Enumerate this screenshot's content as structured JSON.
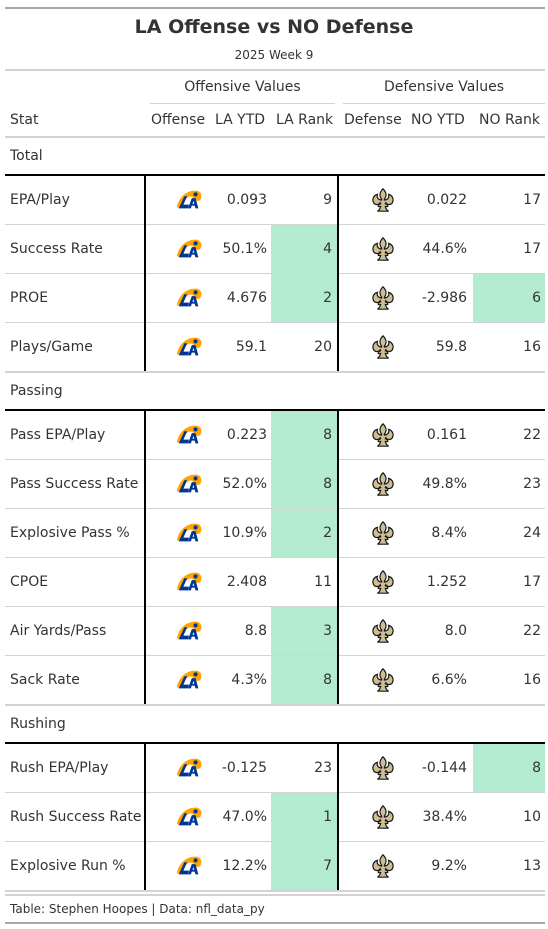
{
  "header": {
    "title": "LA Offense vs NO Defense",
    "subtitle": "2025 Week 9"
  },
  "spanners": {
    "offense": "Offensive Values",
    "defense": "Defensive Values"
  },
  "columns": {
    "stat": "Stat",
    "offense": "Offense",
    "la_ytd": "LA YTD",
    "la_rank": "LA Rank",
    "defense": "Defense",
    "no_ytd": "NO YTD",
    "no_rank": "NO Rank"
  },
  "logos": {
    "offense_icon": "rams-logo-icon",
    "defense_icon": "saints-fleur-de-lis-icon",
    "rams_colors": [
      "#003594",
      "#ffa300"
    ],
    "saints_color": "#101820",
    "saints_gold": "#d3bc8d"
  },
  "highlight_color": "#b3ebd0",
  "groups": [
    {
      "label": "Total",
      "rows": [
        {
          "stat": "EPA/Play",
          "la_ytd": "0.093",
          "la_rank": "9",
          "la_hl": false,
          "no_ytd": "0.022",
          "no_rank": "17",
          "no_hl": false
        },
        {
          "stat": "Success Rate",
          "la_ytd": "50.1%",
          "la_rank": "4",
          "la_hl": true,
          "no_ytd": "44.6%",
          "no_rank": "17",
          "no_hl": false
        },
        {
          "stat": "PROE",
          "la_ytd": "4.676",
          "la_rank": "2",
          "la_hl": true,
          "no_ytd": "-2.986",
          "no_rank": "6",
          "no_hl": true
        },
        {
          "stat": "Plays/Game",
          "la_ytd": "59.1",
          "la_rank": "20",
          "la_hl": false,
          "no_ytd": "59.8",
          "no_rank": "16",
          "no_hl": false
        }
      ]
    },
    {
      "label": "Passing",
      "rows": [
        {
          "stat": "Pass EPA/Play",
          "la_ytd": "0.223",
          "la_rank": "8",
          "la_hl": true,
          "no_ytd": "0.161",
          "no_rank": "22",
          "no_hl": false
        },
        {
          "stat": "Pass Success Rate",
          "la_ytd": "52.0%",
          "la_rank": "8",
          "la_hl": true,
          "no_ytd": "49.8%",
          "no_rank": "23",
          "no_hl": false
        },
        {
          "stat": "Explosive Pass %",
          "la_ytd": "10.9%",
          "la_rank": "2",
          "la_hl": true,
          "no_ytd": "8.4%",
          "no_rank": "24",
          "no_hl": false
        },
        {
          "stat": "CPOE",
          "la_ytd": "2.408",
          "la_rank": "11",
          "la_hl": false,
          "no_ytd": "1.252",
          "no_rank": "17",
          "no_hl": false
        },
        {
          "stat": "Air Yards/Pass",
          "la_ytd": "8.8",
          "la_rank": "3",
          "la_hl": true,
          "no_ytd": "8.0",
          "no_rank": "22",
          "no_hl": false
        },
        {
          "stat": "Sack Rate",
          "la_ytd": "4.3%",
          "la_rank": "8",
          "la_hl": true,
          "no_ytd": "6.6%",
          "no_rank": "16",
          "no_hl": false
        }
      ]
    },
    {
      "label": "Rushing",
      "rows": [
        {
          "stat": "Rush EPA/Play",
          "la_ytd": "-0.125",
          "la_rank": "23",
          "la_hl": false,
          "no_ytd": "-0.144",
          "no_rank": "8",
          "no_hl": true
        },
        {
          "stat": "Rush Success Rate",
          "la_ytd": "47.0%",
          "la_rank": "1",
          "la_hl": true,
          "no_ytd": "38.4%",
          "no_rank": "10",
          "no_hl": false
        },
        {
          "stat": "Explosive Run %",
          "la_ytd": "12.2%",
          "la_rank": "7",
          "la_hl": true,
          "no_ytd": "9.2%",
          "no_rank": "13",
          "no_hl": false
        }
      ]
    }
  ],
  "footer": "Table: Stephen Hoopes | Data: nfl_data_py"
}
